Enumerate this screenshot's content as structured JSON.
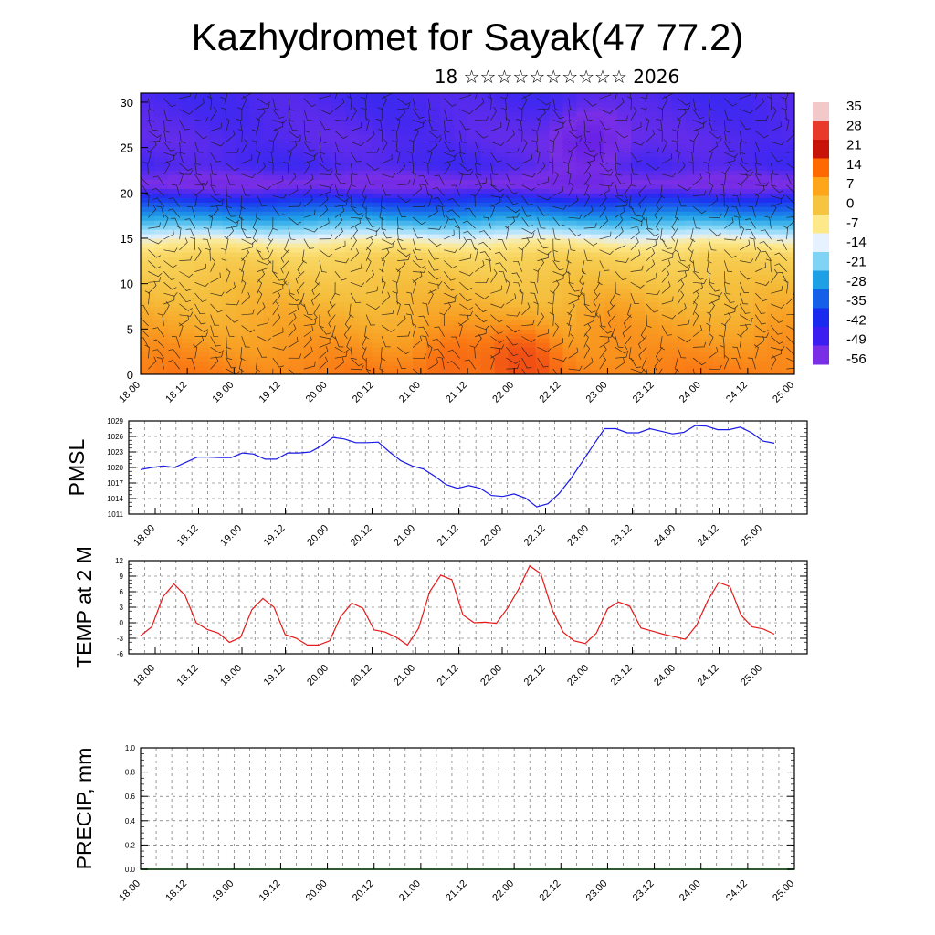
{
  "title": "Kazhydromet for Sayak(47 77.2)",
  "subtitle": "18 ☆☆☆☆☆☆☆☆☆☆ 2026",
  "chart_data": [
    {
      "type": "heatmap",
      "panel": "cross-section",
      "x_ticks": [
        "18.00",
        "18.12",
        "19.00",
        "19.12",
        "20.00",
        "20.12",
        "21.00",
        "21.12",
        "22.00",
        "22.12",
        "23.00",
        "23.12",
        "24.00",
        "24.12",
        "25.00"
      ],
      "y_ticks": [
        "0",
        "5",
        "10",
        "15",
        "20",
        "25",
        "30"
      ],
      "ylim": [
        0,
        31
      ],
      "colorbar_labels": [
        "35",
        "28",
        "21",
        "14",
        "7",
        "0",
        "-7",
        "-14",
        "-21",
        "-28",
        "-35",
        "-42",
        "-49",
        "-56"
      ],
      "colorbar_colors": [
        "#f2c8c8",
        "#e83a2a",
        "#c81408",
        "#ff6a00",
        "#ffa51a",
        "#f5c542",
        "#fde88a",
        "#e6f2ff",
        "#7fd4f5",
        "#1ea0e6",
        "#1460e8",
        "#1a2aef",
        "#3c1ef0",
        "#7a2fe6"
      ],
      "temperature_profile": [
        {
          "h": 0,
          "t": 14
        },
        {
          "h": 5,
          "t": 8
        },
        {
          "h": 10,
          "t": 2
        },
        {
          "h": 13,
          "t": -3
        },
        {
          "h": 15,
          "t": -12
        },
        {
          "h": 17,
          "t": -28
        },
        {
          "h": 19,
          "t": -42
        },
        {
          "h": 21,
          "t": -58
        },
        {
          "h": 23,
          "t": -50
        },
        {
          "h": 26,
          "t": -52
        },
        {
          "h": 31,
          "t": -50
        }
      ],
      "warm_spots": [
        {
          "x": 21.3,
          "h": 2,
          "t": 18
        },
        {
          "x": 22.1,
          "h": 2,
          "t": 22
        },
        {
          "x": 18.3,
          "h": 2,
          "t": 12
        },
        {
          "x": 24.8,
          "h": 4,
          "t": 12
        },
        {
          "x": 23.0,
          "h": 6,
          "t": 10
        }
      ],
      "cold_spots": [
        {
          "x": 22.8,
          "h": 25.5,
          "t": -66
        }
      ]
    },
    {
      "type": "line",
      "panel": "pmsl",
      "ylabel": "PMSL",
      "ylim": [
        1011,
        1029
      ],
      "y_ticks": [
        1011,
        1014,
        1017,
        1020,
        1023,
        1026,
        1029
      ],
      "x_ticks": [
        "18.00",
        "18.12",
        "19.00",
        "19.12",
        "20.00",
        "20.12",
        "21.00",
        "21.12",
        "22.00",
        "22.12",
        "23.00",
        "23.12",
        "24.00",
        "24.12",
        "25.00"
      ],
      "color": "#1a1ae6",
      "series": [
        {
          "values": [
            1019.6,
            1020.0,
            1020.3,
            1020.0,
            1021.0,
            1022.0,
            1022.0,
            1021.9,
            1021.9,
            1022.8,
            1022.6,
            1021.6,
            1021.6,
            1022.8,
            1022.8,
            1023.0,
            1024.2,
            1025.8,
            1025.5,
            1024.8,
            1024.8,
            1024.9,
            1023.0,
            1021.3,
            1020.3,
            1019.7,
            1018.3,
            1016.7,
            1016.0,
            1016.5,
            1016.0,
            1014.6,
            1014.4,
            1014.9,
            1014.1,
            1012.4,
            1013.0,
            1015.0,
            1017.8,
            1021.0,
            1024.3,
            1027.5,
            1027.5,
            1026.7,
            1026.7,
            1027.5,
            1027.0,
            1026.5,
            1026.8,
            1028.1,
            1028.0,
            1027.3,
            1027.3,
            1027.8,
            1026.7,
            1025.1,
            1024.7
          ]
        }
      ]
    },
    {
      "type": "line",
      "panel": "temp2m",
      "ylabel": "TEMP at 2 M",
      "ylim": [
        -6,
        12
      ],
      "y_ticks": [
        -6,
        -3,
        0,
        3,
        6,
        9,
        12
      ],
      "x_ticks": [
        "18.00",
        "18.12",
        "19.00",
        "19.12",
        "20.00",
        "20.12",
        "21.00",
        "21.12",
        "22.00",
        "22.12",
        "23.00",
        "23.12",
        "24.00",
        "24.12",
        "25.00"
      ],
      "color": "#e61a1a",
      "series": [
        {
          "values": [
            -2.5,
            -0.8,
            5.0,
            7.5,
            5.3,
            0.0,
            -1.3,
            -2.0,
            -3.8,
            -2.8,
            2.5,
            4.7,
            3.0,
            -2.3,
            -3.0,
            -4.3,
            -4.3,
            -3.5,
            1.2,
            3.8,
            2.8,
            -1.4,
            -1.8,
            -2.8,
            -4.3,
            -1.1,
            6.0,
            9.2,
            8.3,
            1.5,
            0.0,
            0.1,
            -0.1,
            2.8,
            6.5,
            11.0,
            9.5,
            2.6,
            -1.8,
            -3.5,
            -4.0,
            -2.0,
            2.7,
            4.0,
            3.2,
            -1.0,
            -1.6,
            -2.2,
            -2.7,
            -3.2,
            -0.5,
            4.2,
            7.8,
            7.0,
            1.5,
            -0.8,
            -1.2,
            -2.2
          ]
        }
      ]
    },
    {
      "type": "bar",
      "panel": "precip",
      "ylabel": "PRECIP, mm",
      "ylim": [
        0.0,
        1.0
      ],
      "y_ticks": [
        "0.0",
        "0.2",
        "0.4",
        "0.6",
        "0.8",
        "1.0"
      ],
      "x_ticks": [
        "18.00",
        "18.12",
        "19.00",
        "19.12",
        "20.00",
        "20.12",
        "21.00",
        "21.12",
        "22.00",
        "22.12",
        "23.00",
        "23.12",
        "24.00",
        "24.12",
        "25.00"
      ],
      "color": "#2e5a2e",
      "values": []
    }
  ]
}
